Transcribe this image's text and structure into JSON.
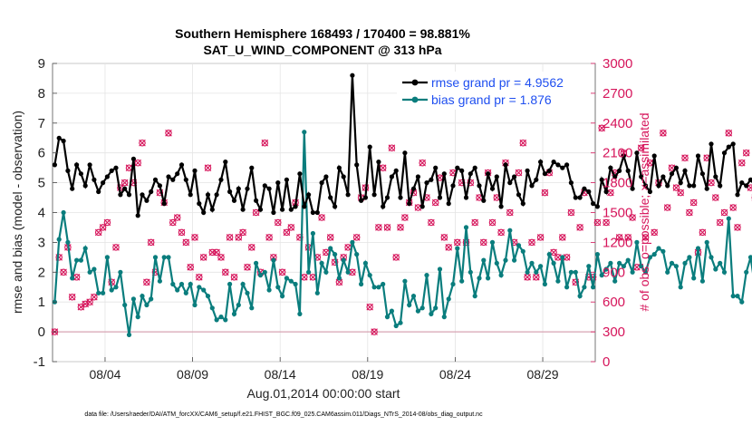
{
  "chart_data": {
    "type": "line",
    "title": "Southern Hemisphere 168493 / 170400 = 98.881%",
    "subtitle": "SAT_U_WIND_COMPONENT @ 313 hPa",
    "xlabel": "Aug.01,2014 00:00:00 start",
    "ylabel_left": "rmse and bias (model - observation)",
    "ylabel_right": "# of obs: o=possible; ×=assimilated",
    "footer": "data file: /Users/raeder/DAI/ATM_forcXX/CAM6_setup/f.e21.FHIST_BGC.f09_025.CAM6assim.011/Diags_NTrS_2014-08/obs_diag_output.nc",
    "x_range_days": [
      1.0,
      32.0
    ],
    "ylim_left": [
      -1,
      9
    ],
    "ylim_right": [
      0,
      3000
    ],
    "x_tick_labels": [
      "08/04",
      "08/09",
      "08/14",
      "08/19",
      "08/24",
      "08/29"
    ],
    "x_tick_days": [
      4,
      9,
      14,
      19,
      24,
      29
    ],
    "y_left_ticks": [
      "-1",
      "0",
      "1",
      "2",
      "3",
      "4",
      "5",
      "6",
      "7",
      "8",
      "9"
    ],
    "y_right_ticks": [
      "0",
      "300",
      "600",
      "900",
      "1200",
      "1500",
      "1800",
      "2100",
      "2400",
      "2700",
      "3000"
    ],
    "series": [
      {
        "name": "rmse",
        "legend": "rmse grand pr = 4.9562",
        "color": "#000000",
        "values": [
          5.6,
          6.5,
          6.4,
          5.4,
          4.8,
          5.6,
          5.3,
          4.9,
          5.6,
          5.1,
          4.7,
          5.0,
          5.2,
          5.4,
          5.5,
          4.6,
          4.8,
          4.6,
          5.8,
          3.9,
          4.6,
          4.4,
          4.7,
          5.1,
          4.9,
          4.3,
          5.2,
          5.1,
          5.3,
          5.6,
          5.1,
          4.6,
          5.4,
          4.3,
          4.0,
          4.6,
          4.1,
          4.6,
          5.1,
          5.7,
          4.7,
          4.4,
          4.8,
          4.1,
          4.8,
          5.5,
          4.4,
          4.1,
          4.9,
          4.8,
          4.0,
          5.0,
          4.1,
          5.1,
          4.1,
          4.2,
          5.3,
          4.2,
          4.6,
          4.0,
          4.0,
          5.0,
          5.2,
          4.5,
          4.2,
          5.5,
          5.2,
          4.6,
          8.6,
          5.6,
          4.4,
          4.5,
          6.2,
          4.6,
          5.7,
          4.2,
          4.5,
          5.2,
          5.4,
          4.5,
          6.0,
          4.3,
          4.8,
          5.2,
          4.2,
          5.0,
          5.1,
          5.5,
          4.5,
          5.3,
          4.3,
          4.9,
          5.5,
          5.4,
          4.5,
          5.3,
          5.5,
          4.9,
          4.4,
          5.3,
          4.8,
          5.2,
          4.2,
          5.6,
          5.0,
          5.2,
          4.6,
          4.3,
          5.4,
          4.9,
          5.1,
          5.7,
          5.3,
          5.4,
          5.7,
          5.6,
          5.5,
          5.6,
          5.0,
          4.5,
          4.5,
          4.8,
          4.7,
          4.3,
          4.2,
          5.1,
          4.7,
          5.5,
          5.2,
          5.4,
          5.9,
          5.4,
          4.8,
          6.0,
          5.2,
          4.9,
          4.7,
          5.9,
          4.9,
          5.2,
          4.9,
          5.3,
          5.5,
          5.0,
          5.4,
          4.9,
          4.9,
          5.9,
          5.3,
          4.8,
          6.3,
          5.2,
          4.9,
          6.0,
          6.2,
          6.3,
          4.6,
          5.0,
          4.9,
          5.1,
          4.9,
          6.0,
          5.0,
          4.5,
          6.0,
          4.7,
          5.8,
          4.9,
          4.6,
          4.9,
          4.4,
          4.9,
          4.2,
          6.6,
          4.6,
          4.2,
          5.7,
          5.1,
          4.8,
          4.8,
          4.3
        ],
        "note": "values at 6-hourly steps from 08/01 00Z, read approximately off the plot"
      },
      {
        "name": "bias",
        "legend": "bias grand pr = 1.876",
        "color": "#0a7d7d",
        "values": [
          1.0,
          3.1,
          4.0,
          3.0,
          1.8,
          2.4,
          2.4,
          2.8,
          2.0,
          2.1,
          1.3,
          1.3,
          2.5,
          1.4,
          1.5,
          2.0,
          0.9,
          -0.1,
          1.1,
          0.5,
          1.2,
          0.9,
          1.1,
          2.5,
          1.7,
          2.5,
          2.5,
          1.6,
          1.4,
          1.6,
          1.3,
          1.6,
          0.9,
          1.5,
          1.4,
          1.2,
          0.8,
          0.4,
          0.5,
          0.4,
          1.6,
          0.6,
          0.9,
          1.6,
          1.3,
          0.8,
          2.3,
          1.9,
          2.0,
          1.4,
          2.4,
          1.5,
          1.2,
          1.8,
          1.7,
          1.6,
          0.6,
          6.7,
          2.0,
          3.3,
          1.3,
          2.3,
          2.0,
          2.8,
          2.6,
          1.8,
          2.4,
          2.0,
          3.0,
          2.6,
          1.6,
          2.3,
          1.9,
          1.5,
          1.5,
          1.6,
          0.5,
          0.7,
          0.2,
          0.3,
          1.7,
          0.9,
          1.2,
          0.7,
          0.8,
          1.9,
          0.6,
          0.8,
          2.1,
          0.5,
          1.1,
          1.6,
          2.8,
          1.7,
          3.5,
          2.0,
          1.2,
          1.8,
          2.4,
          1.8,
          3.0,
          2.3,
          1.9,
          2.4,
          3.4,
          2.4,
          2.9,
          2.7,
          2.0,
          2.3,
          2.0,
          2.2,
          1.6,
          2.6,
          2.3,
          1.7,
          2.5,
          1.5,
          2.0,
          2.0,
          1.2,
          1.5,
          2.2,
          1.5,
          2.6,
          1.9,
          2.1,
          2.3,
          1.7,
          2.3,
          2.2,
          2.4,
          2.0,
          3.0,
          2.2,
          2.0,
          2.5,
          2.6,
          2.8,
          2.7,
          2.0,
          2.3,
          2.2,
          1.5,
          2.3,
          2.5,
          1.8,
          2.8,
          1.7,
          3.0,
          2.5,
          2.1,
          2.3,
          2.0,
          3.8,
          1.2,
          1.2,
          1.0,
          2.0,
          2.5,
          1.5,
          1.5,
          2.4,
          1.4,
          2.1,
          1.9,
          1.9,
          1.3,
          1.5,
          2.0,
          1.7,
          1.5,
          1.3,
          1.1,
          2.6,
          2.2,
          1.9,
          1.0,
          1.0,
          3.6,
          2.1,
          1.6,
          1.3,
          1.1
        ],
        "note": "values at 6-hourly steps from 08/01 00Z, read approximately off the plot"
      },
      {
        "name": "obs_count",
        "legend": "# of obs (possible / assimilated)",
        "color": "#d6155b",
        "axis": "right",
        "values": [
          300,
          1050,
          900,
          1150,
          650,
          850,
          550,
          580,
          600,
          650,
          1300,
          1350,
          1400,
          800,
          1150,
          1750,
          1800,
          1950,
          1800,
          2000,
          2200,
          800,
          1200,
          900,
          1700,
          1600,
          2300,
          1400,
          1450,
          1300,
          1200,
          950,
          1250,
          850,
          1050,
          1950,
          1100,
          1100,
          1050,
          900,
          1250,
          850,
          1250,
          1300,
          950,
          1150,
          1500,
          900,
          2200,
          1250,
          1050,
          1400,
          900,
          1300,
          1350,
          1600,
          1250,
          850,
          1150,
          850,
          1050,
          1450,
          1100,
          1250,
          1000,
          800,
          1050,
          1150,
          900,
          1250,
          1650,
          1750,
          550,
          300,
          1350,
          1950,
          1350,
          2150,
          1050,
          1350,
          1450,
          1600,
          1700,
          1550,
          2000,
          1650,
          1400,
          1600,
          1850,
          1250,
          1150,
          1900,
          1200,
          1800,
          1200,
          1800,
          1400,
          1650,
          1200,
          1900,
          1400,
          1650,
          1300,
          2000,
          1500,
          1200,
          1900,
          2200,
          850,
          1200,
          850,
          1250,
          1700,
          1900,
          1100,
          1050,
          1250,
          1050,
          1500,
          800,
          1350,
          1700,
          850,
          850,
          1400,
          2350,
          1400,
          1700,
          1900,
          1250,
          2100,
          1250,
          1450,
          950,
          2150,
          1250,
          2000,
          1300,
          1800,
          2300,
          1550,
          1950,
          1750,
          1700,
          2050,
          1500,
          1600,
          1100,
          1300,
          2050,
          1800,
          1650,
          1400,
          1500,
          2300,
          1550,
          1350,
          2000,
          2100,
          1750,
          1650,
          2200,
          1300,
          1650,
          2350,
          1250,
          1400,
          1500,
          2200,
          2100,
          1600,
          1550,
          1500,
          2150,
          2300,
          2400,
          2000,
          2300,
          1450,
          0
        ],
        "note": "counts at 6-hourly steps, read approximately off the plot"
      }
    ]
  }
}
